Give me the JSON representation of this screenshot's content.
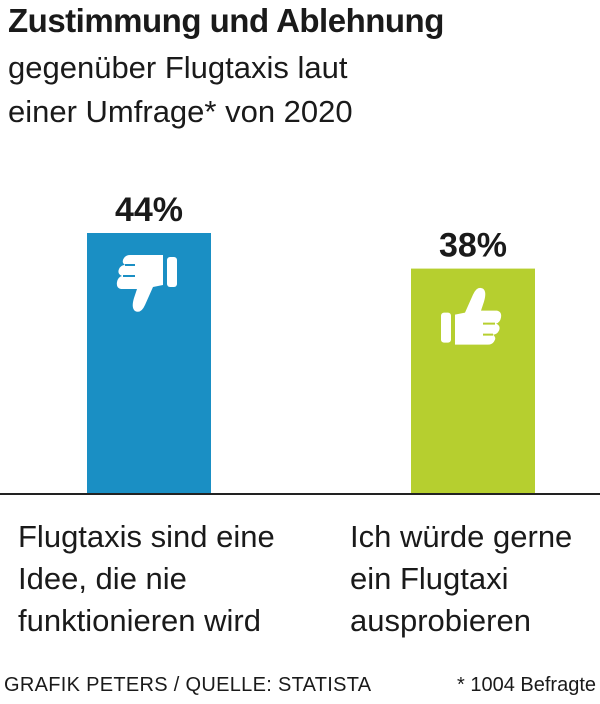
{
  "header": {
    "title": "Zustimmung und Ablehnung",
    "subtitle_line1": "gegenüber Flugtaxis laut",
    "subtitle_line2": "einer Umfrage* von 2020"
  },
  "chart_data": {
    "type": "bar",
    "categories": [
      "Flugtaxis sind eine Idee, die nie funktionieren wird",
      "Ich würde gerne ein Flugtaxi ausprobieren"
    ],
    "category_lines": [
      [
        "Flugtaxis sind eine",
        "Idee, die nie",
        "funktionieren wird"
      ],
      [
        "Ich würde gerne",
        "ein Flugtaxi",
        "ausprobieren"
      ]
    ],
    "values": [
      44,
      38
    ],
    "value_labels": [
      "44%",
      "38%"
    ],
    "unit": "%",
    "icons": [
      "thumbs-down-icon",
      "thumbs-up-icon"
    ],
    "colors": [
      "#1a8fc4",
      "#b6cf2f"
    ],
    "ylim": [
      0,
      44
    ],
    "grid": false,
    "legend": "none"
  },
  "footer": {
    "source": "GRAFIK PETERS / QUELLE: STATISTA",
    "note": "* 1004 Befragte"
  }
}
